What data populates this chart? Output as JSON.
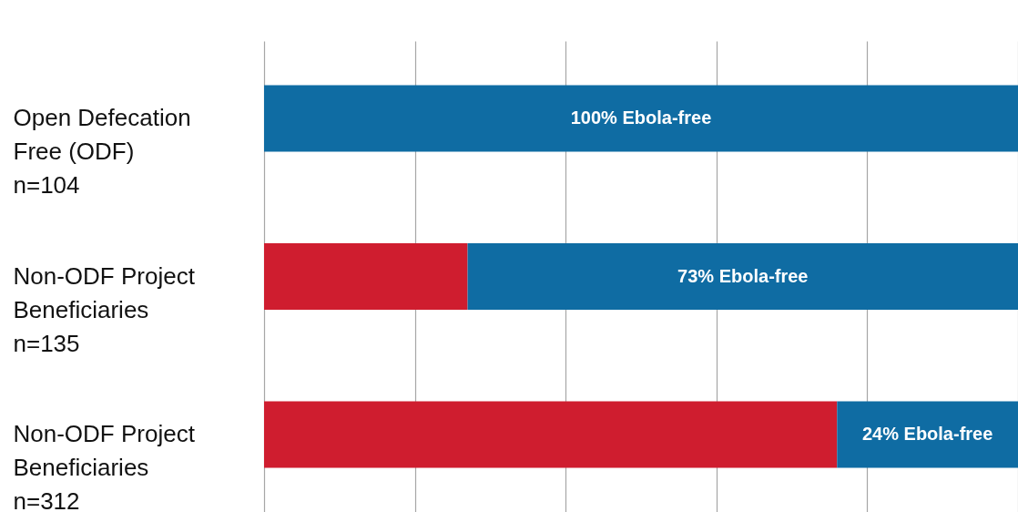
{
  "chart_data": {
    "type": "bar",
    "orientation": "horizontal",
    "stacked": true,
    "categories": [
      "Open Defecation\nFree (ODF)\nn=104",
      "Non-ODF Project\nBeneficiaries\nn=135",
      "Non-ODF Project\nBeneficiaries\nn=312"
    ],
    "series": [
      {
        "color": "#cf1d2f",
        "values": [
          0,
          27,
          76
        ]
      },
      {
        "color": "#0f6ca3",
        "values": [
          100,
          73,
          24
        ],
        "value_labels": [
          "100% Ebola-free",
          "73% Ebola-free",
          "24% Ebola-free"
        ]
      }
    ],
    "xlim": [
      0,
      100
    ],
    "xticks": [
      {
        "value": 0,
        "label": null
      },
      {
        "value": 20,
        "label": null
      },
      {
        "value": 40,
        "label": null
      },
      {
        "value": 60,
        "label": null
      },
      {
        "value": 80,
        "label": null
      },
      {
        "value": 100,
        "label": null
      }
    ],
    "grid": "x",
    "tick_labels": "y"
  }
}
